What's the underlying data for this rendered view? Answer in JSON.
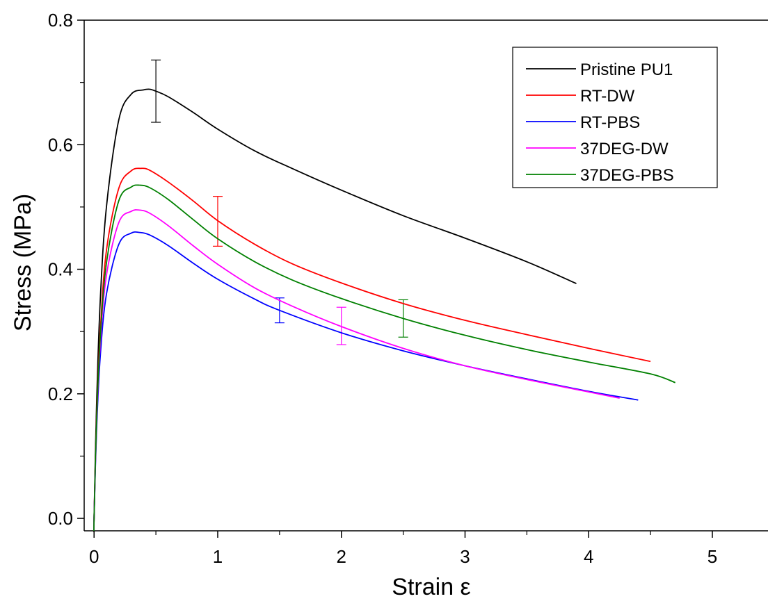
{
  "chart_data": {
    "type": "line",
    "title": "",
    "xlabel": "Strain ε",
    "ylabel": "Stress (MPa)",
    "xlim": [
      -0.08,
      5.45
    ],
    "ylim": [
      -0.02,
      0.8
    ],
    "xticks": [
      0,
      1,
      2,
      3,
      4,
      5
    ],
    "yticks": [
      0.0,
      0.2,
      0.4,
      0.6,
      0.8
    ],
    "xtick_labels": [
      "0",
      "1",
      "2",
      "3",
      "4",
      "5"
    ],
    "ytick_labels": [
      "0.0",
      "0.2",
      "0.4",
      "0.6",
      "0.8"
    ],
    "grid": false,
    "legend_position": "top-right",
    "series": [
      {
        "name": "Pristine PU1",
        "color": "#000000",
        "x": [
          0,
          0.02,
          0.05,
          0.1,
          0.2,
          0.3,
          0.4,
          0.45,
          0.5,
          0.6,
          0.8,
          1.0,
          1.3,
          1.6,
          2.0,
          2.5,
          3.0,
          3.5,
          3.9
        ],
        "y": [
          0,
          0.18,
          0.35,
          0.5,
          0.64,
          0.681,
          0.688,
          0.689,
          0.686,
          0.677,
          0.652,
          0.625,
          0.59,
          0.562,
          0.527,
          0.486,
          0.45,
          0.412,
          0.377
        ],
        "error_bar": {
          "x": 0.5,
          "y": 0.687,
          "low": 0.636,
          "high": 0.736
        }
      },
      {
        "name": "RT-DW",
        "color": "#ff0000",
        "x": [
          0,
          0.02,
          0.05,
          0.1,
          0.2,
          0.3,
          0.38,
          0.45,
          0.6,
          0.8,
          1.0,
          1.3,
          1.6,
          2.0,
          2.5,
          3.0,
          3.5,
          4.0,
          4.5
        ],
        "y": [
          0,
          0.16,
          0.3,
          0.43,
          0.53,
          0.558,
          0.562,
          0.559,
          0.54,
          0.51,
          0.478,
          0.44,
          0.409,
          0.378,
          0.345,
          0.318,
          0.295,
          0.273,
          0.252
        ],
        "error_bar": {
          "x": 1.0,
          "y": 0.477,
          "low": 0.437,
          "high": 0.517
        }
      },
      {
        "name": "RT-PBS",
        "color": "#0000ff",
        "x": [
          0,
          0.02,
          0.05,
          0.1,
          0.2,
          0.3,
          0.37,
          0.45,
          0.6,
          0.8,
          1.0,
          1.3,
          1.5,
          2.0,
          2.5,
          3.0,
          3.5,
          4.0,
          4.4
        ],
        "y": [
          0,
          0.14,
          0.26,
          0.36,
          0.44,
          0.458,
          0.459,
          0.455,
          0.438,
          0.41,
          0.384,
          0.352,
          0.334,
          0.298,
          0.269,
          0.245,
          0.224,
          0.204,
          0.19
        ],
        "error_bar": {
          "x": 1.5,
          "y": 0.334,
          "low": 0.314,
          "high": 0.354
        }
      },
      {
        "name": "37DEG-DW",
        "color": "#ff00ff",
        "x": [
          0,
          0.02,
          0.05,
          0.1,
          0.2,
          0.3,
          0.37,
          0.45,
          0.6,
          0.8,
          1.0,
          1.3,
          1.6,
          2.0,
          2.5,
          3.0,
          3.5,
          4.0,
          4.25
        ],
        "y": [
          0,
          0.15,
          0.28,
          0.39,
          0.475,
          0.493,
          0.495,
          0.49,
          0.47,
          0.438,
          0.408,
          0.37,
          0.341,
          0.308,
          0.273,
          0.245,
          0.223,
          0.203,
          0.193
        ],
        "error_bar": {
          "x": 2.0,
          "y": 0.309,
          "low": 0.279,
          "high": 0.339
        }
      },
      {
        "name": "37DEG-PBS",
        "color": "#008000",
        "x": [
          0,
          0.02,
          0.05,
          0.1,
          0.2,
          0.3,
          0.37,
          0.45,
          0.6,
          0.8,
          1.0,
          1.3,
          1.6,
          2.0,
          2.5,
          3.0,
          3.5,
          4.0,
          4.5,
          4.7
        ],
        "y": [
          0,
          0.155,
          0.29,
          0.41,
          0.51,
          0.532,
          0.535,
          0.531,
          0.512,
          0.48,
          0.449,
          0.412,
          0.383,
          0.353,
          0.321,
          0.294,
          0.271,
          0.251,
          0.232,
          0.218
        ],
        "error_bar": {
          "x": 2.5,
          "y": 0.321,
          "low": 0.291,
          "high": 0.351
        }
      }
    ]
  }
}
